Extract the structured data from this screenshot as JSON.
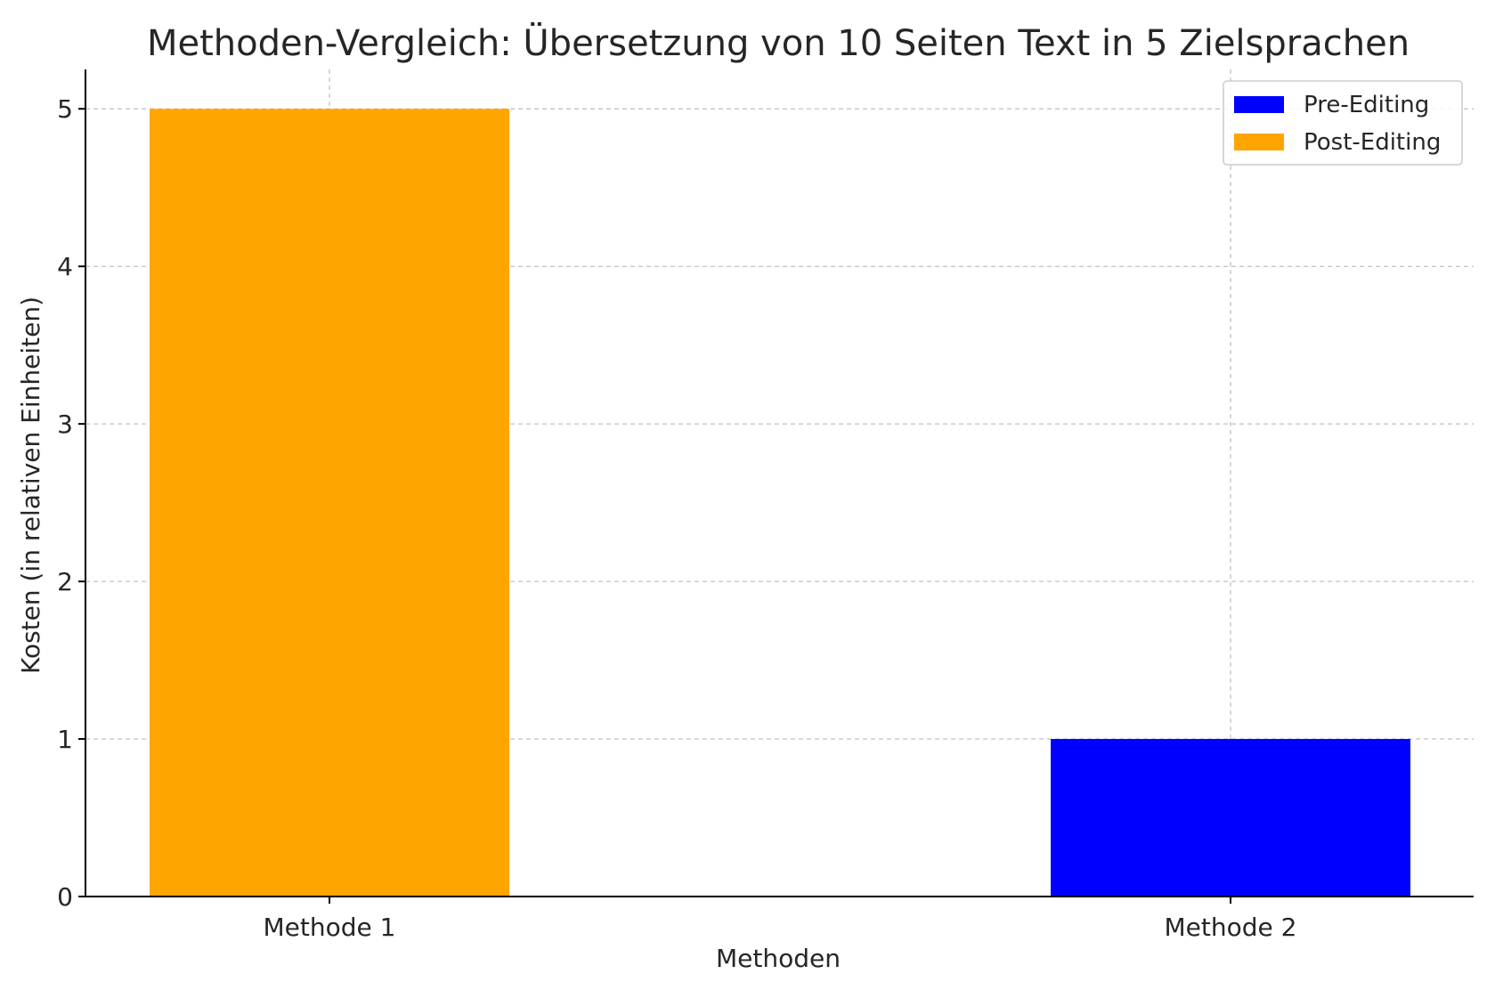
{
  "chart_data": {
    "type": "bar",
    "title": "Methoden-Vergleich: Übersetzung von 10 Seiten Text in 5 Zielsprachen",
    "xlabel": "Methoden",
    "ylabel": "Kosten (in relativen Einheiten)",
    "categories": [
      "Methode 1",
      "Methode 2"
    ],
    "series": [
      {
        "name": "Pre-Editing",
        "color": "#0000ff",
        "values": [
          0,
          1
        ]
      },
      {
        "name": "Post-Editing",
        "color": "#ffa500",
        "values": [
          5,
          0
        ]
      }
    ],
    "ylim": [
      0,
      5.25
    ],
    "yticks": [
      0,
      1,
      2,
      3,
      4,
      5
    ],
    "grid": true,
    "legend_position": "top-right"
  }
}
